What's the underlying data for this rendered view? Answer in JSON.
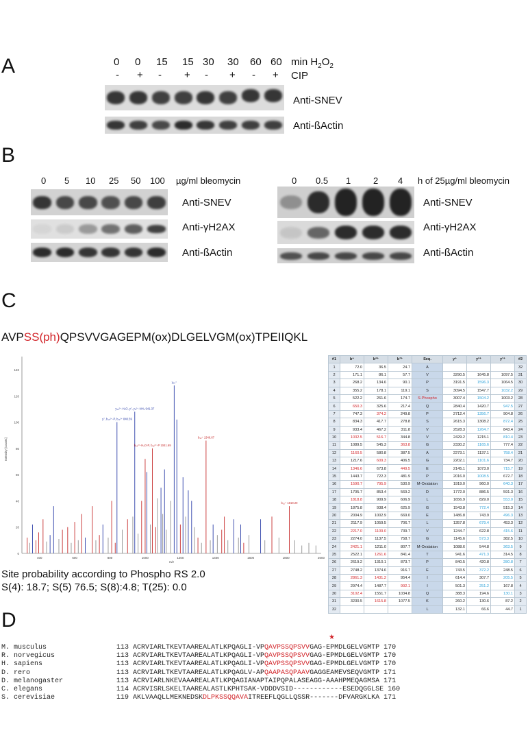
{
  "panelA": {
    "letter": "A",
    "time_values": [
      "0",
      "0",
      "15",
      "15",
      "30",
      "30",
      "60",
      "60"
    ],
    "time_unit": "min H",
    "time_unit_sub": "2",
    "time_unit_after": "O",
    "time_unit_sub2": "2",
    "cip_values": [
      "-",
      "+",
      "-",
      "+",
      "-",
      "+",
      "-",
      "+"
    ],
    "cip_label": "CIP",
    "blot1_label": "Anti-SNEV",
    "blot2_label": "Anti-ßActin"
  },
  "panelB": {
    "letter": "B",
    "left_doses": [
      "0",
      "5",
      "10",
      "25",
      "50",
      "100"
    ],
    "left_unit": "µg/ml bleomycin",
    "right_times": [
      "0",
      "0.5",
      "1",
      "2",
      "4"
    ],
    "right_unit": "h of 25µg/ml bleomycin",
    "labels": [
      "Anti-SNEV",
      "Anti-γH2AX",
      "Anti-ßActin"
    ]
  },
  "panelC": {
    "letter": "C",
    "peptide_pre": "AVP",
    "peptide_red": "SS(ph)",
    "peptide_post": "QPSVVGAGEPM(ox)DLGELVGM(ox)TPEIIQKL",
    "site_title": "Site probability according to Phospho RS 2.0",
    "site_values": "S(4): 18.7; S(5) 76.5; S(8):4.8; T(25): 0.0",
    "spectrum_ylabel": "Intensity [counts]",
    "spectrum_xlabel": "m/z",
    "x_ticks": [
      "400",
      "600",
      "800",
      "1000",
      "1200",
      "1400",
      "1600",
      "1800",
      "2000"
    ],
    "y_ticks": [
      "0",
      "20",
      "40",
      "60",
      "80",
      "100",
      "120",
      "140"
    ],
    "peak_labels": [
      {
        "text": "y₁₀⁺",
        "mz": 1165.7
      },
      {
        "text": "y₁₀²⁺-H₂O, y⁷, y₈²⁺-NH₃ 941.37",
        "mz": 941.37
      },
      {
        "text": "y⁷, b₁₀²⁺-P, b₁₁²⁺ 840.59",
        "mz": 840.59
      },
      {
        "text": "b₁₅²⁺-H₂O-P, b₁₆²⁺-P 1041.69",
        "mz": 1041.69
      },
      {
        "text": "b₁₂⁺ 1346.67",
        "mz": 1346.67
      },
      {
        "text": "b₁₆⁺ 1819.20",
        "mz": 1819.2
      }
    ],
    "table": {
      "headers": [
        "#1",
        "b⁺",
        "b²⁺",
        "b³⁺",
        "Seq.",
        "y⁺",
        "y²⁺",
        "y³⁺",
        "#2"
      ],
      "rows": [
        [
          "1",
          "72.0",
          "36.5",
          "24.7",
          "A",
          "",
          "",
          "",
          "32"
        ],
        [
          "2",
          "171.1",
          "86.1",
          "57.7",
          "V",
          "3290.5",
          "1645.8",
          "1097.5",
          "31"
        ],
        [
          "3",
          "268.2",
          "134.6",
          "90.1",
          "P",
          "3191.5",
          "1596.3",
          "1064.5",
          "30"
        ],
        [
          "4",
          "355.2",
          "178.1",
          "119.1",
          "S",
          "3094.5",
          "1547.7",
          "1032.2",
          "29"
        ],
        [
          "5",
          "522.2",
          "261.6",
          "174.7",
          "S-Phospho",
          "3007.4",
          "1504.2",
          "1003.2",
          "28"
        ],
        [
          "6",
          "650.3",
          "325.6",
          "217.4",
          "Q",
          "2840.4",
          "1420.7",
          "947.5",
          "27"
        ],
        [
          "7",
          "747.3",
          "374.2",
          "249.8",
          "P",
          "2712.4",
          "1356.7",
          "904.8",
          "26"
        ],
        [
          "8",
          "834.3",
          "417.7",
          "278.8",
          "S",
          "2615.3",
          "1308.2",
          "872.4",
          "25"
        ],
        [
          "9",
          "933.4",
          "467.2",
          "311.8",
          "V",
          "2528.3",
          "1264.7",
          "843.4",
          "24"
        ],
        [
          "10",
          "1032.5",
          "516.7",
          "344.8",
          "V",
          "2429.2",
          "1215.1",
          "810.4",
          "23"
        ],
        [
          "11",
          "1089.5",
          "545.3",
          "363.8",
          "G",
          "2330.2",
          "1165.6",
          "777.4",
          "22"
        ],
        [
          "12",
          "1160.5",
          "580.8",
          "387.5",
          "A",
          "2273.1",
          "1137.1",
          "758.4",
          "21"
        ],
        [
          "13",
          "1217.6",
          "609.3",
          "406.5",
          "G",
          "2202.1",
          "1101.6",
          "734.7",
          "20"
        ],
        [
          "14",
          "1346.6",
          "673.8",
          "449.5",
          "E",
          "2145.1",
          "1073.0",
          "715.7",
          "19"
        ],
        [
          "15",
          "1443.7",
          "722.3",
          "481.9",
          "P",
          "2016.0",
          "1008.5",
          "672.7",
          "18"
        ],
        [
          "16",
          "1590.7",
          "795.9",
          "530.9",
          "M-Oxidation",
          "1919.0",
          "960.0",
          "640.3",
          "17"
        ],
        [
          "17",
          "1705.7",
          "853.4",
          "569.2",
          "D",
          "1772.0",
          "886.5",
          "591.3",
          "16"
        ],
        [
          "18",
          "1818.8",
          "909.9",
          "606.9",
          "L",
          "1656.9",
          "829.0",
          "553.0",
          "15"
        ],
        [
          "19",
          "1875.8",
          "938.4",
          "625.9",
          "G",
          "1543.8",
          "772.4",
          "515.3",
          "14"
        ],
        [
          "20",
          "2004.9",
          "1002.9",
          "669.0",
          "E",
          "1486.8",
          "743.9",
          "496.3",
          "13"
        ],
        [
          "21",
          "2117.9",
          "1059.5",
          "706.7",
          "L",
          "1357.8",
          "679.4",
          "453.3",
          "12"
        ],
        [
          "22",
          "2217.0",
          "1109.0",
          "739.7",
          "V",
          "1244.7",
          "622.8",
          "415.6",
          "11"
        ],
        [
          "23",
          "2274.0",
          "1137.5",
          "758.7",
          "G",
          "1145.6",
          "573.3",
          "382.5",
          "10"
        ],
        [
          "24",
          "2421.1",
          "1211.0",
          "807.7",
          "M-Oxidation",
          "1088.6",
          "544.8",
          "363.5",
          "9"
        ],
        [
          "25",
          "2522.1",
          "1261.6",
          "841.4",
          "T",
          "941.6",
          "471.3",
          "314.5",
          "8"
        ],
        [
          "26",
          "2619.2",
          "1310.1",
          "873.7",
          "P",
          "840.5",
          "420.8",
          "280.8",
          "7"
        ],
        [
          "27",
          "2748.2",
          "1374.6",
          "916.7",
          "E",
          "743.5",
          "372.2",
          "248.5",
          "6"
        ],
        [
          "28",
          "2861.3",
          "1431.2",
          "954.4",
          "I",
          "614.4",
          "307.7",
          "205.5",
          "5"
        ],
        [
          "29",
          "2974.4",
          "1487.7",
          "992.1",
          "I",
          "501.3",
          "251.2",
          "167.8",
          "4"
        ],
        [
          "30",
          "3102.4",
          "1551.7",
          "1034.8",
          "Q",
          "388.3",
          "194.6",
          "130.1",
          "3"
        ],
        [
          "31",
          "3230.5",
          "1615.8",
          "1077.5",
          "K",
          "260.2",
          "130.6",
          "87.2",
          "2"
        ],
        [
          "32",
          "",
          "",
          "",
          "L",
          "132.1",
          "66.6",
          "44.7",
          "1"
        ]
      ]
    }
  },
  "panelD": {
    "letter": "D",
    "star": "★",
    "rows": [
      {
        "species": "M. musculus",
        "start": "113",
        "pre": "ACRVIARLTKEVTAAREALATLKPQAGLI-VP",
        "red": "QAVPSSQPSVV",
        "post": "GAG-EPMDLGELVGMTP",
        "end": "170"
      },
      {
        "species": "R. norvegicus",
        "start": "113",
        "pre": "ACRVIARLTKEVTAAREALATLKPQAGLI-VP",
        "red": "QAVPSSQPSVV",
        "post": "GAG-EPMDLGELVGMTP",
        "end": "170"
      },
      {
        "species": "H. sapiens",
        "start": "113",
        "pre": "ACRVIARLTKEVTAAREALATLKPQAGLI-VP",
        "red": "QAVPSSQPSVV",
        "post": "GAG-EPMDLGELVGMTP",
        "end": "170"
      },
      {
        "species": "D. rero",
        "start": "113",
        "pre": "ACRVIARLTKEVTAAREALATLKPQAGLV-AP",
        "red": "QAAPASQPAAV",
        "post": "GAGGEAMEVSEQVGMTP",
        "end": "171"
      },
      {
        "species": "D. melanogaster",
        "start": "113",
        "pre": "ACRVIARLNKEVAAAREALATLKPQAGIANAPTAIPQPALASEAGG-AAAHPMEQAGMSA",
        "red": "",
        "post": "",
        "end": "171"
      },
      {
        "species": "C. elegans",
        "start": "114",
        "pre": "ACRVISRLSKELTAAREALASTLKPHTSAK-VDDDVSID------------ESEDQGGLSE",
        "red": "",
        "post": "",
        "end": "160"
      },
      {
        "species": "S. cerevisiae",
        "start": "119",
        "pre": "AKLVAAQLLMEKNEDSK",
        "red": "DLPKSSQQAVA",
        "post": "ITREEFLQGLLQSSR-------DFVARGKLKA",
        "end": "171"
      }
    ]
  }
}
